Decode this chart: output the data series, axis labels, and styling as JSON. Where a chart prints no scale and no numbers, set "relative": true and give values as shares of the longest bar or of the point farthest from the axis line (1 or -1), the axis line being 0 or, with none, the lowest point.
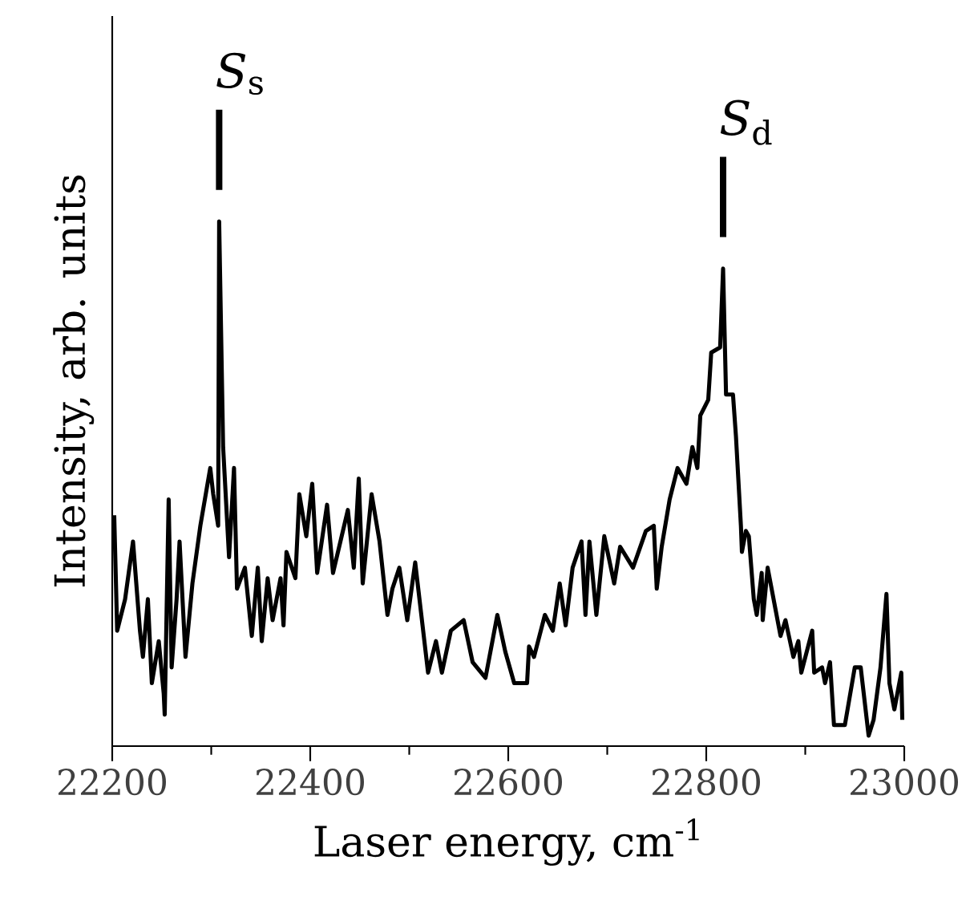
{
  "chart_data": {
    "type": "line",
    "relative": true,
    "xlabel": "Laser energy, cm$^{-1}$",
    "ylabel": "Intensity, arb. units",
    "xlim": [
      22200,
      23000
    ],
    "xticks": [
      22200,
      22400,
      22600,
      22800,
      23000
    ],
    "grid": false,
    "marker": "none",
    "line_style": "solid",
    "annotations": [
      {
        "text": "*S*$_{s}$",
        "x": 22308,
        "y": 1.0
      },
      {
        "text": "*S*$_{d}$",
        "x": 22817,
        "y": 0.91
      }
    ],
    "series": [
      {
        "color": "#000000",
        "x": [
          22202,
          22205,
          22213,
          22221,
          22228,
          22231,
          22236,
          22240,
          22247,
          22252,
          22253,
          22257,
          22260,
          22265,
          22268,
          22274,
          22281,
          22289,
          22299,
          22302,
          22307,
          22308,
          22312,
          22318,
          22323,
          22326,
          22334,
          22341,
          22347,
          22351,
          22357,
          22362,
          22370,
          22373,
          22376,
          22385,
          22389,
          22396,
          22402,
          22407,
          22417,
          22423,
          22438,
          22444,
          22449,
          22453,
          22462,
          22470,
          22478,
          22483,
          22490,
          22498,
          22506,
          22519,
          22527,
          22533,
          22542,
          22555,
          22564,
          22577,
          22589,
          22597,
          22606,
          22619,
          22621,
          22626,
          22637,
          22645,
          22652,
          22658,
          22665,
          22674,
          22678,
          22682,
          22689,
          22697,
          22707,
          22713,
          22726,
          22739,
          22747,
          22750,
          22755,
          22763,
          22771,
          22780,
          22786,
          22791,
          22794,
          22802,
          22805,
          22814,
          22817,
          22820,
          22827,
          22830,
          22835,
          22836,
          22840,
          22843,
          22848,
          22851,
          22856,
          22857,
          22862,
          22875,
          22880,
          22888,
          22893,
          22896,
          22907,
          22909,
          22917,
          22920,
          22925,
          22929,
          22940,
          22950,
          22956,
          22964,
          22969,
          22976,
          22982,
          22985,
          22990,
          22997,
          22998
        ],
        "values": [
          0.44,
          0.22,
          0.28,
          0.39,
          0.22,
          0.17,
          0.28,
          0.12,
          0.2,
          0.1,
          0.06,
          0.47,
          0.15,
          0.28,
          0.39,
          0.17,
          0.31,
          0.42,
          0.53,
          0.48,
          0.42,
          1.0,
          0.57,
          0.36,
          0.53,
          0.3,
          0.34,
          0.21,
          0.34,
          0.2,
          0.32,
          0.24,
          0.32,
          0.23,
          0.37,
          0.32,
          0.48,
          0.4,
          0.5,
          0.33,
          0.46,
          0.33,
          0.45,
          0.34,
          0.51,
          0.31,
          0.48,
          0.39,
          0.25,
          0.3,
          0.34,
          0.24,
          0.35,
          0.14,
          0.2,
          0.14,
          0.22,
          0.24,
          0.16,
          0.13,
          0.25,
          0.18,
          0.12,
          0.12,
          0.19,
          0.17,
          0.25,
          0.22,
          0.31,
          0.23,
          0.34,
          0.39,
          0.25,
          0.39,
          0.25,
          0.4,
          0.31,
          0.38,
          0.34,
          0.41,
          0.42,
          0.3,
          0.38,
          0.47,
          0.53,
          0.5,
          0.57,
          0.53,
          0.63,
          0.66,
          0.75,
          0.76,
          0.91,
          0.67,
          0.67,
          0.59,
          0.42,
          0.37,
          0.41,
          0.4,
          0.28,
          0.25,
          0.33,
          0.24,
          0.34,
          0.21,
          0.24,
          0.17,
          0.2,
          0.14,
          0.22,
          0.14,
          0.15,
          0.12,
          0.16,
          0.04,
          0.04,
          0.15,
          0.15,
          0.02,
          0.05,
          0.15,
          0.29,
          0.12,
          0.07,
          0.14,
          0.05
        ]
      }
    ]
  }
}
